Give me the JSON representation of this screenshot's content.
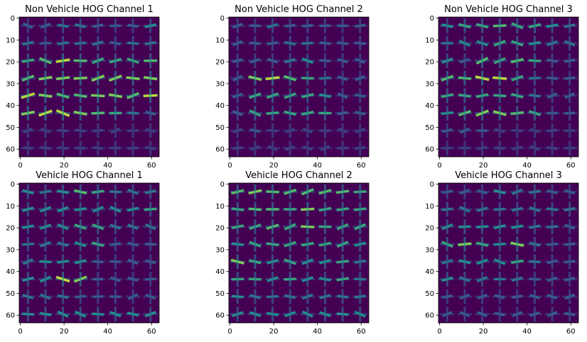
{
  "chart_data": [
    {
      "type": "heatmap",
      "title": "Non Vehicle HOG Channel 1",
      "xticks": [
        0,
        20,
        40,
        60
      ],
      "yticks": [
        0,
        10,
        20,
        30,
        40,
        50,
        60
      ],
      "xlim": [
        -0.5,
        63.5
      ],
      "ylim": [
        63.5,
        -0.5
      ],
      "colormap": "viridis",
      "colors": {
        "background": "#440154",
        "cell": "#3b528b",
        "mid": "#21918c",
        "bright": "#5ec962",
        "peak": "#fde725"
      },
      "cells": 8,
      "orientation_strength": [
        [
          0.3,
          0.3,
          0.4,
          0.4,
          0.3,
          0.3,
          0.3,
          0.5
        ],
        [
          0.4,
          0.3,
          0.4,
          0.4,
          0.4,
          0.3,
          0.4,
          0.4
        ],
        [
          0.6,
          0.7,
          0.9,
          0.7,
          0.6,
          0.6,
          0.6,
          0.7
        ],
        [
          0.7,
          0.8,
          0.8,
          0.8,
          0.8,
          0.8,
          0.8,
          0.8
        ],
        [
          0.9,
          0.8,
          0.7,
          0.7,
          0.8,
          0.8,
          0.7,
          0.9
        ],
        [
          0.8,
          0.9,
          0.9,
          0.8,
          0.7,
          0.6,
          0.4,
          0.3
        ],
        [
          0.2,
          0.2,
          0.2,
          0.2,
          0.2,
          0.2,
          0.2,
          0.2
        ],
        [
          0.2,
          0.2,
          0.2,
          0.2,
          0.2,
          0.2,
          0.2,
          0.2
        ]
      ]
    },
    {
      "type": "heatmap",
      "title": "Non Vehicle HOG Channel 2",
      "xticks": [
        0,
        20,
        40,
        60
      ],
      "yticks": [
        0,
        10,
        20,
        30,
        40,
        50,
        60
      ],
      "xlim": [
        -0.5,
        63.5
      ],
      "ylim": [
        63.5,
        -0.5
      ],
      "colormap": "viridis",
      "cells": 8,
      "orientation_strength": [
        [
          0.3,
          0.3,
          0.4,
          0.3,
          0.3,
          0.3,
          0.3,
          0.3
        ],
        [
          0.3,
          0.3,
          0.3,
          0.4,
          0.4,
          0.3,
          0.3,
          0.3
        ],
        [
          0.3,
          0.3,
          0.3,
          0.4,
          0.5,
          0.3,
          0.3,
          0.3
        ],
        [
          0.3,
          0.8,
          0.9,
          0.7,
          0.6,
          0.4,
          0.3,
          0.3
        ],
        [
          0.3,
          0.6,
          0.6,
          0.6,
          0.6,
          0.5,
          0.3,
          0.3
        ],
        [
          0.3,
          0.6,
          0.6,
          0.6,
          0.6,
          0.6,
          0.3,
          0.3
        ],
        [
          0.2,
          0.3,
          0.2,
          0.2,
          0.2,
          0.2,
          0.2,
          0.2
        ],
        [
          0.2,
          0.2,
          0.2,
          0.2,
          0.2,
          0.2,
          0.2,
          0.2
        ]
      ]
    },
    {
      "type": "heatmap",
      "title": "Non Vehicle HOG Channel 3",
      "xticks": [
        0,
        20,
        40,
        60
      ],
      "yticks": [
        0,
        10,
        20,
        30,
        40,
        50,
        60
      ],
      "xlim": [
        -0.5,
        63.5
      ],
      "ylim": [
        63.5,
        -0.5
      ],
      "colormap": "viridis",
      "cells": 8,
      "orientation_strength": [
        [
          0.5,
          0.6,
          0.6,
          0.7,
          0.6,
          0.6,
          0.5,
          0.4
        ],
        [
          0.4,
          0.5,
          0.5,
          0.6,
          0.6,
          0.5,
          0.4,
          0.4
        ],
        [
          0.5,
          0.3,
          0.7,
          0.6,
          0.7,
          0.6,
          0.3,
          0.3
        ],
        [
          0.7,
          0.7,
          0.9,
          0.9,
          0.6,
          0.4,
          0.3,
          0.3
        ],
        [
          0.6,
          0.6,
          0.6,
          0.6,
          0.6,
          0.4,
          0.3,
          0.3
        ],
        [
          0.5,
          0.7,
          0.8,
          0.8,
          0.7,
          0.6,
          0.3,
          0.3
        ],
        [
          0.3,
          0.3,
          0.3,
          0.2,
          0.2,
          0.2,
          0.2,
          0.2
        ],
        [
          0.2,
          0.2,
          0.2,
          0.2,
          0.2,
          0.2,
          0.2,
          0.2
        ]
      ]
    },
    {
      "type": "heatmap",
      "title": "Vehicle HOG Channel 1",
      "xticks": [
        0,
        20,
        40,
        60
      ],
      "yticks": [
        0,
        10,
        20,
        30,
        40,
        50,
        60
      ],
      "xlim": [
        -0.5,
        63.5
      ],
      "ylim": [
        63.5,
        -0.5
      ],
      "colormap": "viridis",
      "cells": 8,
      "orientation_strength": [
        [
          0.5,
          0.4,
          0.5,
          0.7,
          0.6,
          0.4,
          0.4,
          0.4
        ],
        [
          0.5,
          0.5,
          0.5,
          0.5,
          0.5,
          0.5,
          0.5,
          0.6
        ],
        [
          0.5,
          0.5,
          0.5,
          0.6,
          0.6,
          0.4,
          0.4,
          0.4
        ],
        [
          0.4,
          0.4,
          0.4,
          0.5,
          0.6,
          0.3,
          0.3,
          0.3
        ],
        [
          0.4,
          0.5,
          0.5,
          0.5,
          0.3,
          0.3,
          0.3,
          0.3
        ],
        [
          0.5,
          0.5,
          0.9,
          0.8,
          0.3,
          0.3,
          0.3,
          0.3
        ],
        [
          0.4,
          0.4,
          0.4,
          0.3,
          0.3,
          0.3,
          0.3,
          0.3
        ],
        [
          0.5,
          0.5,
          0.5,
          0.5,
          0.5,
          0.5,
          0.5,
          0.5
        ]
      ]
    },
    {
      "type": "heatmap",
      "title": "Vehicle HOG Channel 2",
      "xticks": [
        0,
        20,
        40,
        60
      ],
      "yticks": [
        0,
        10,
        20,
        30,
        40,
        50,
        60
      ],
      "xlim": [
        -0.5,
        63.5
      ],
      "ylim": [
        63.5,
        -0.5
      ],
      "colormap": "viridis",
      "cells": 8,
      "orientation_strength": [
        [
          0.7,
          0.8,
          0.7,
          0.7,
          0.7,
          0.7,
          0.7,
          0.6
        ],
        [
          0.6,
          0.7,
          0.7,
          0.6,
          0.8,
          0.6,
          0.6,
          0.6
        ],
        [
          0.6,
          0.6,
          0.7,
          0.6,
          0.8,
          0.6,
          0.6,
          0.6
        ],
        [
          0.5,
          0.6,
          0.6,
          0.6,
          0.6,
          0.6,
          0.6,
          0.5
        ],
        [
          0.8,
          0.6,
          0.5,
          0.6,
          0.5,
          0.5,
          0.6,
          0.4
        ],
        [
          0.6,
          0.6,
          0.5,
          0.6,
          0.5,
          0.5,
          0.6,
          0.4
        ],
        [
          0.5,
          0.4,
          0.4,
          0.4,
          0.4,
          0.4,
          0.4,
          0.4
        ],
        [
          0.5,
          0.5,
          0.5,
          0.5,
          0.5,
          0.5,
          0.5,
          0.5
        ]
      ]
    },
    {
      "type": "heatmap",
      "title": "Vehicle HOG Channel 3",
      "xticks": [
        0,
        20,
        40,
        60
      ],
      "yticks": [
        0,
        10,
        20,
        30,
        40,
        50,
        60
      ],
      "xlim": [
        -0.5,
        63.5
      ],
      "ylim": [
        63.5,
        -0.5
      ],
      "colormap": "viridis",
      "cells": 8,
      "orientation_strength": [
        [
          0.3,
          0.3,
          0.3,
          0.5,
          0.4,
          0.4,
          0.3,
          0.3
        ],
        [
          0.4,
          0.4,
          0.4,
          0.4,
          0.4,
          0.4,
          0.4,
          0.4
        ],
        [
          0.5,
          0.5,
          0.5,
          0.5,
          0.5,
          0.4,
          0.4,
          0.3
        ],
        [
          0.6,
          0.8,
          0.6,
          0.5,
          0.8,
          0.4,
          0.3,
          0.3
        ],
        [
          0.4,
          0.5,
          0.5,
          0.5,
          0.6,
          0.4,
          0.3,
          0.3
        ],
        [
          0.5,
          0.4,
          0.4,
          0.4,
          0.4,
          0.3,
          0.3,
          0.3
        ],
        [
          0.3,
          0.3,
          0.3,
          0.3,
          0.3,
          0.3,
          0.3,
          0.3
        ],
        [
          0.3,
          0.3,
          0.3,
          0.3,
          0.3,
          0.3,
          0.3,
          0.3
        ]
      ]
    }
  ]
}
